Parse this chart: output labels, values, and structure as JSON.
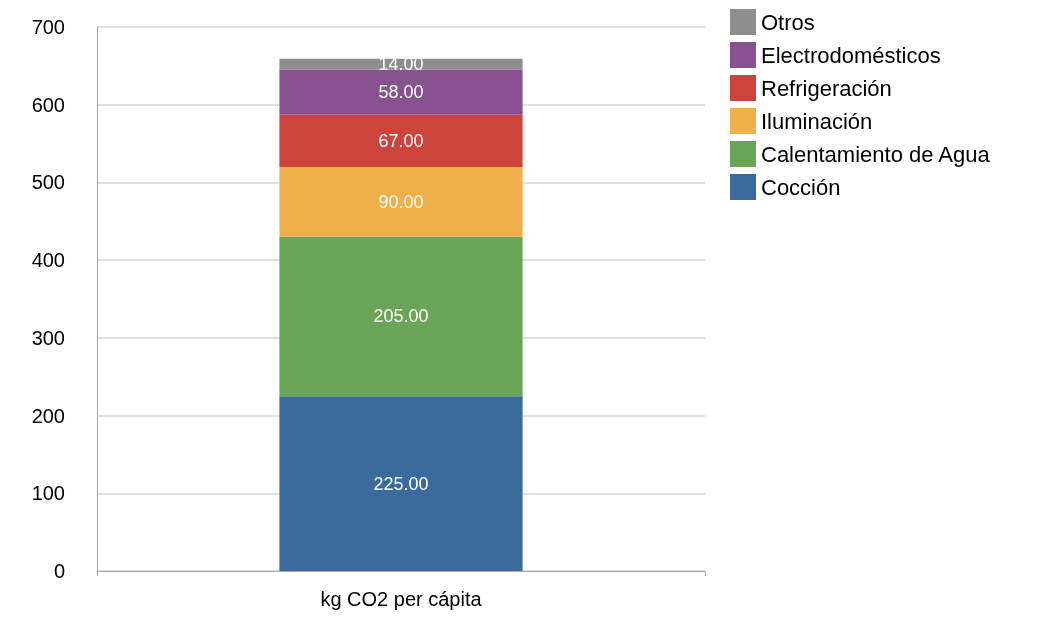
{
  "chart_data": {
    "type": "bar",
    "stacked": true,
    "categories": [
      "kg CO2 per cápita"
    ],
    "series": [
      {
        "name": "Cocción",
        "color": "#3a6b9c",
        "values": [
          225
        ],
        "value_labels": [
          "225.00"
        ]
      },
      {
        "name": "Calentamiento de Agua",
        "color": "#6aa457",
        "values": [
          205
        ],
        "value_labels": [
          "205.00"
        ]
      },
      {
        "name": "Iluminación",
        "color": "#efb04b",
        "values": [
          90
        ],
        "value_labels": [
          "90.00"
        ]
      },
      {
        "name": "Refrigeración",
        "color": "#cc443c",
        "values": [
          67
        ],
        "value_labels": [
          "67.00"
        ]
      },
      {
        "name": "Electrodomésticos",
        "color": "#87528f",
        "values": [
          58
        ],
        "value_labels": [
          "58.00"
        ]
      },
      {
        "name": "Otros",
        "color": "#8e8e8e",
        "values": [
          14
        ],
        "value_labels": [
          "14.00"
        ]
      }
    ],
    "ylim": [
      0,
      700
    ],
    "yticks": [
      0,
      100,
      200,
      300,
      400,
      500,
      600,
      700
    ],
    "grid": "y",
    "legend": "top right"
  }
}
